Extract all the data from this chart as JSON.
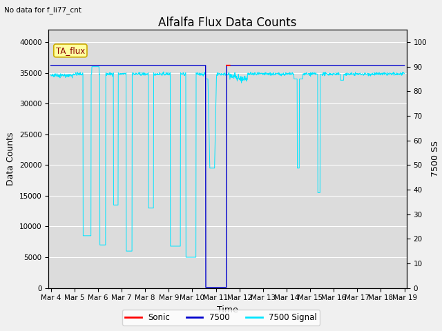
{
  "title": "Alfalfa Flux Data Counts",
  "no_data_label": "No data for f_li77_cnt",
  "legend_label": "TA_flux",
  "xlabel": "Time",
  "ylabel_left": "Data Counts",
  "ylabel_right": "7500 SS",
  "ylim_left": [
    0,
    42000
  ],
  "ylim_right": [
    0,
    105
  ],
  "yticks_left": [
    0,
    5000,
    10000,
    15000,
    20000,
    25000,
    30000,
    35000,
    40000
  ],
  "yticks_right": [
    0,
    10,
    20,
    30,
    40,
    50,
    60,
    70,
    80,
    90,
    100
  ],
  "xtick_labels": [
    "Mar 4",
    "Mar 5",
    "Mar 6",
    "Mar 7",
    "Mar 8",
    "Mar 9",
    "Mar 10",
    "Mar 11",
    "Mar 12",
    "Mar 13",
    "Mar 14",
    "Mar 15",
    "Mar 16",
    "Mar 17",
    "Mar 18",
    "Mar 19"
  ],
  "color_sonic": "#ff0000",
  "color_7500": "#0000cc",
  "color_7500signal": "#00e5ff",
  "background_color": "#dcdcdc",
  "fig_background": "#f0f0f0",
  "grid_color": "#ffffff",
  "title_fontsize": 12,
  "label_fontsize": 9,
  "tick_fontsize": 7.5
}
